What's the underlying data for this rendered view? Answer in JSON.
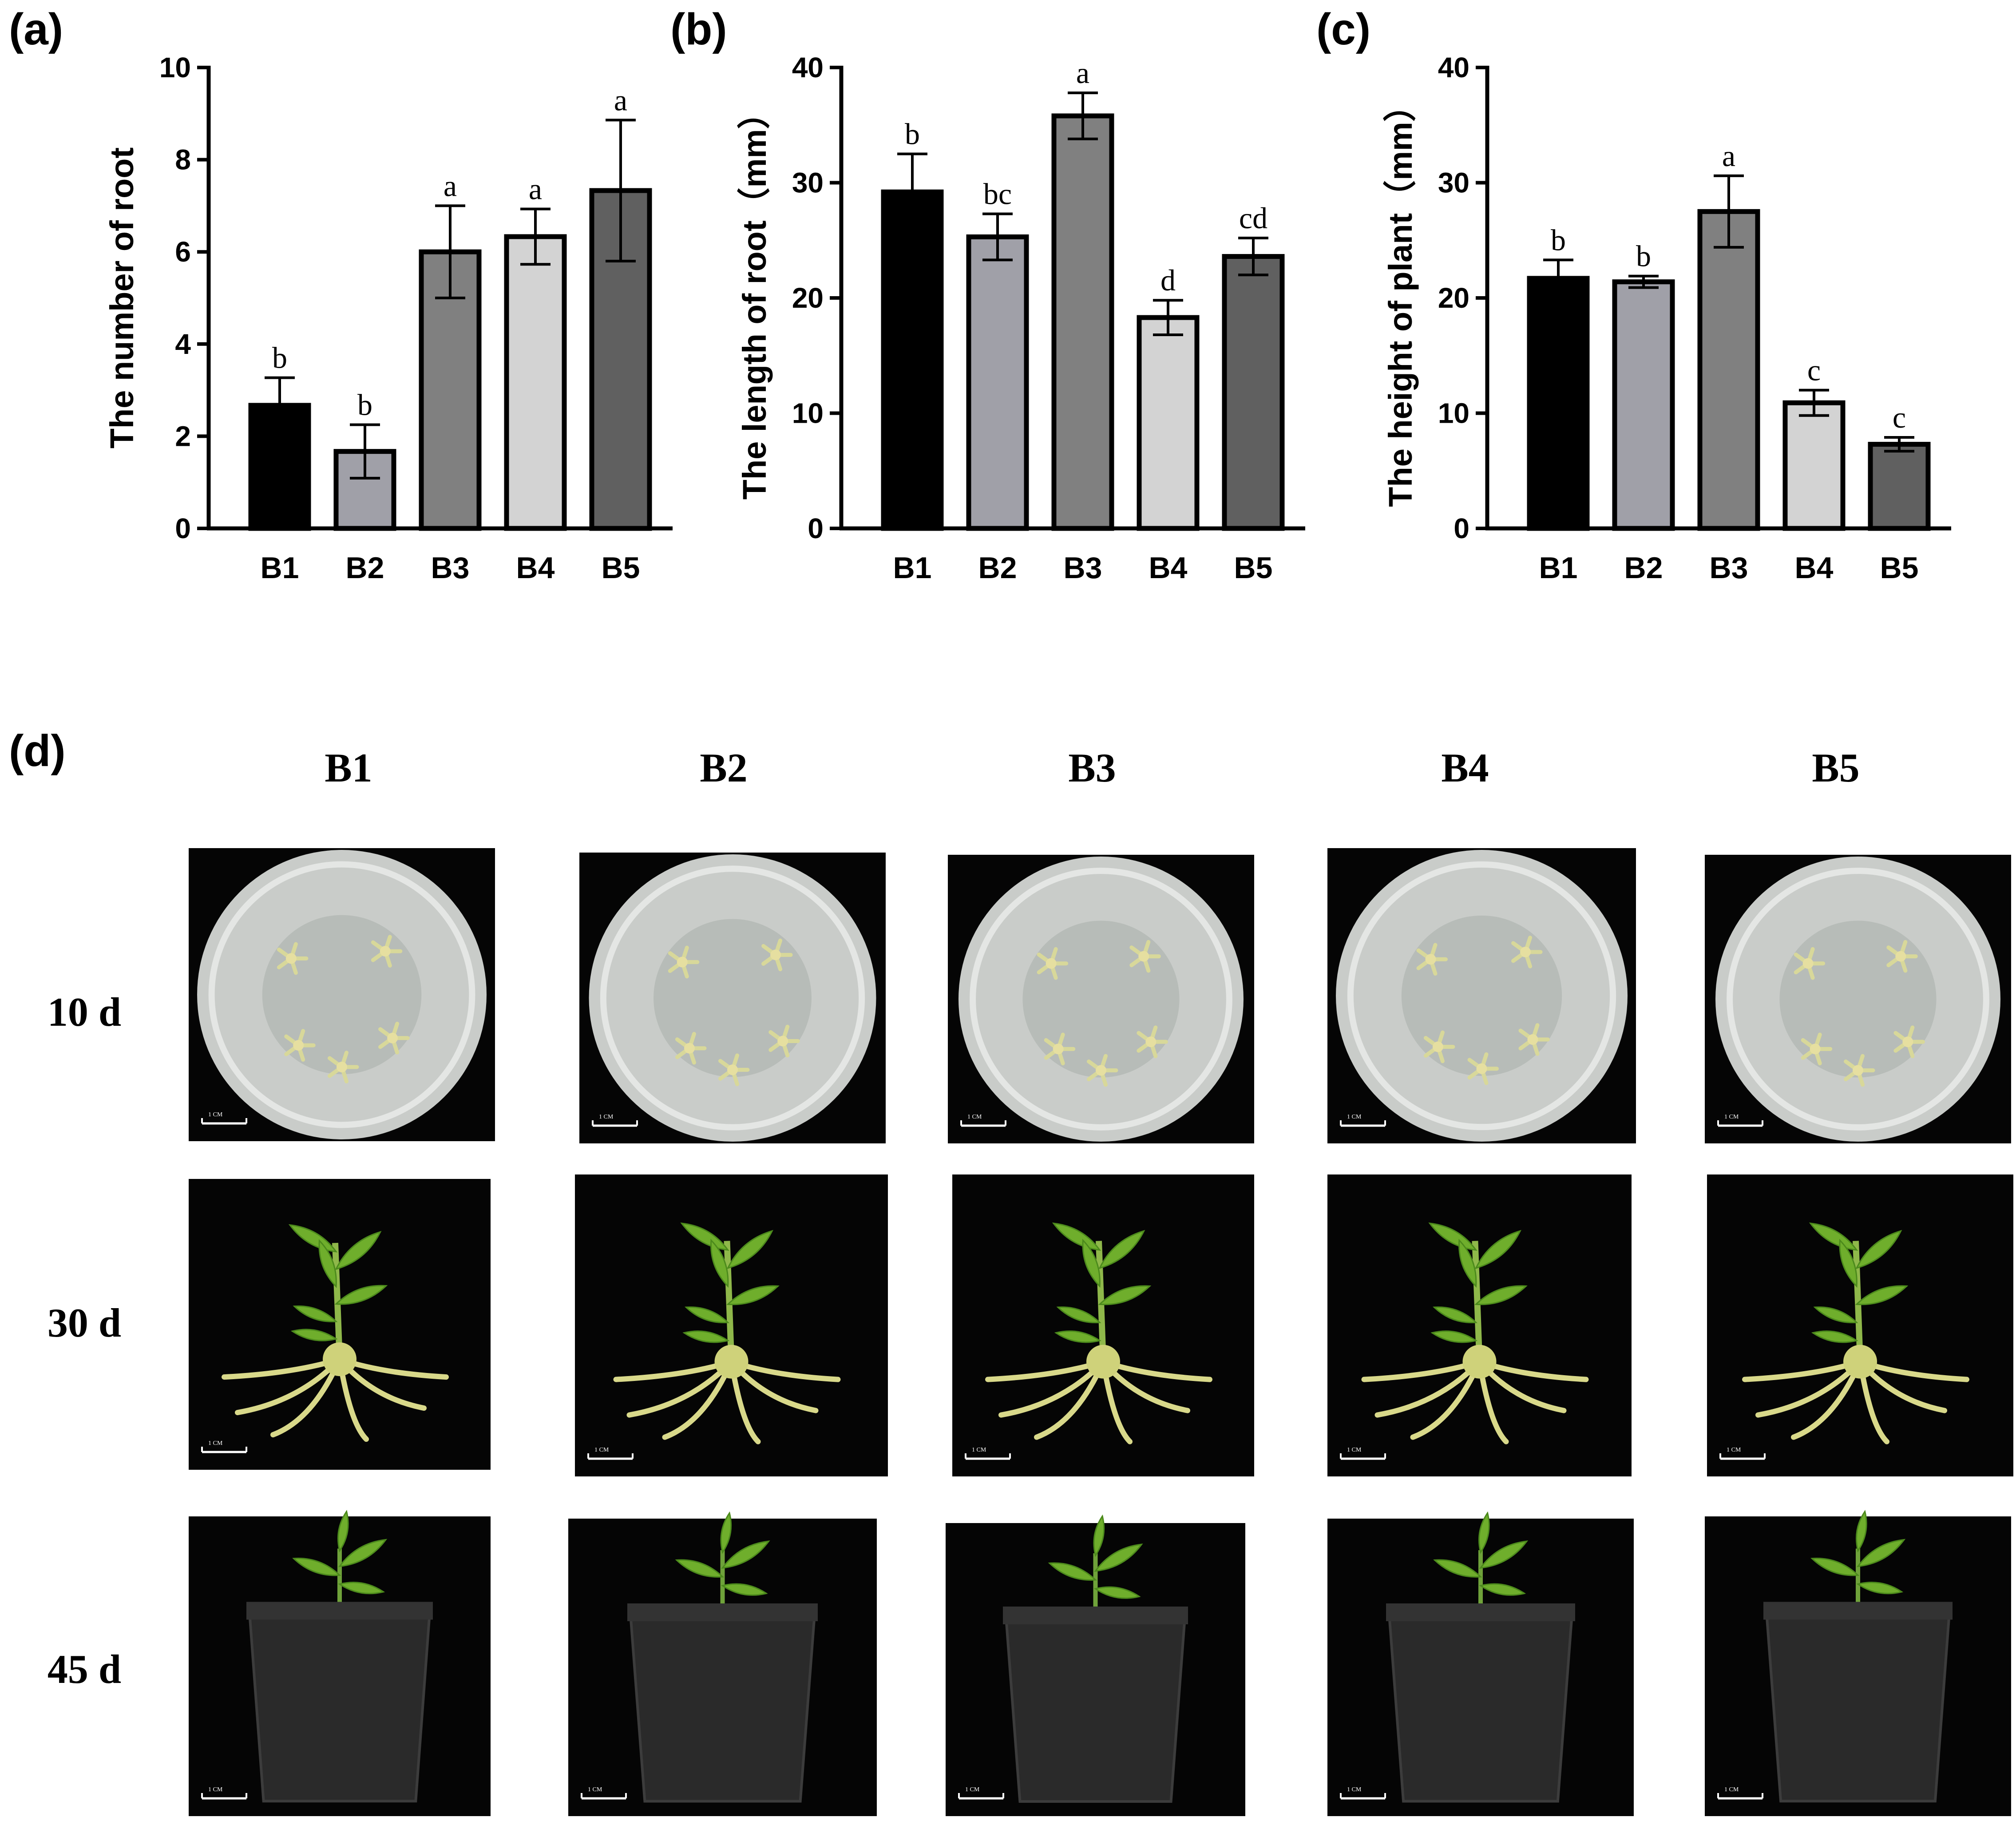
{
  "chart_data": [
    {
      "panel": "(a)",
      "type": "bar",
      "ylabel": "The number of root",
      "xlabel": "",
      "ylim": [
        0,
        10
      ],
      "yticks": [
        0,
        2,
        4,
        6,
        8,
        10
      ],
      "categories": [
        "B1",
        "B2",
        "B3",
        "B4",
        "B5"
      ],
      "values": [
        2.67,
        1.67,
        6.0,
        6.33,
        7.33
      ],
      "errors": [
        0.6,
        0.58,
        1.0,
        0.6,
        1.53
      ],
      "significance": [
        "b",
        "b",
        "a",
        "a",
        "a"
      ],
      "colors": [
        "#000000",
        "#a0a0a8",
        "#808080",
        "#d3d3d3",
        "#606060"
      ]
    },
    {
      "panel": "(b)",
      "type": "bar",
      "ylabel": "The length of root（mm）",
      "xlabel": "",
      "ylim": [
        0,
        40
      ],
      "yticks": [
        0,
        10,
        20,
        30,
        40
      ],
      "categories": [
        "B1",
        "B2",
        "B3",
        "B4",
        "B5"
      ],
      "values": [
        29.2,
        25.3,
        35.8,
        18.3,
        23.6
      ],
      "errors": [
        3.3,
        2.0,
        2.0,
        1.5,
        1.6
      ],
      "significance": [
        "b",
        "bc",
        "a",
        "d",
        "cd"
      ],
      "colors": [
        "#000000",
        "#a0a0a8",
        "#808080",
        "#d3d3d3",
        "#606060"
      ]
    },
    {
      "panel": "(c)",
      "type": "bar",
      "ylabel": "The height of plant（mm）",
      "xlabel": "",
      "ylim": [
        0,
        40
      ],
      "yticks": [
        0,
        10,
        20,
        30,
        40
      ],
      "categories": [
        "B1",
        "B2",
        "B3",
        "B4",
        "B5"
      ],
      "values": [
        21.7,
        21.4,
        27.5,
        10.9,
        7.3
      ],
      "errors": [
        1.6,
        0.5,
        3.1,
        1.1,
        0.6
      ],
      "significance": [
        "b",
        "b",
        "a",
        "c",
        "c"
      ],
      "colors": [
        "#000000",
        "#a0a0a8",
        "#808080",
        "#d3d3d3",
        "#606060"
      ]
    }
  ],
  "photo_panel": {
    "letter": "(d)",
    "columns": [
      "B1",
      "B2",
      "B3",
      "B4",
      "B5"
    ],
    "rows": [
      "10 d",
      "30 d",
      "45 d"
    ],
    "scale_label": "1 CM"
  }
}
